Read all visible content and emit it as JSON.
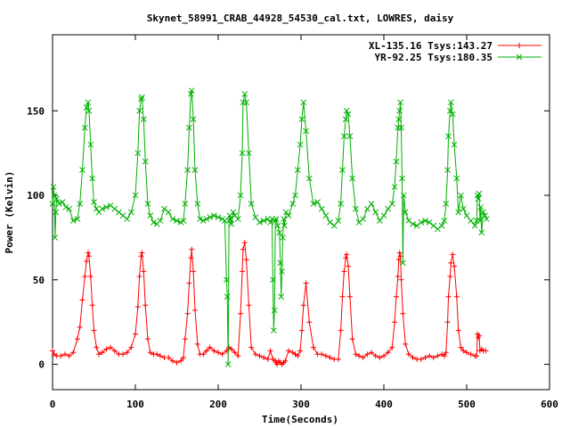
{
  "chart_data": {
    "type": "line",
    "title": "Skynet_58991_CRAB_44928_54530_cal.txt, LOWRES, daisy",
    "xlabel": "Time(Seconds)",
    "ylabel": "Power (Kelvin)",
    "xlim": [
      0,
      600
    ],
    "ylim": [
      -15,
      195
    ],
    "x_ticks": [
      0,
      100,
      200,
      300,
      400,
      500,
      600
    ],
    "y_ticks": [
      0,
      50,
      100,
      150
    ],
    "grid": false,
    "legend_position": "top-right",
    "series": [
      {
        "name": "XL-135.16 Tsys:143.27",
        "color": "#ff0000",
        "marker": "plus",
        "x": [
          0,
          2,
          5,
          10,
          15,
          20,
          25,
          30,
          33,
          36,
          39,
          41,
          43,
          44,
          46,
          48,
          50,
          53,
          56,
          60,
          65,
          70,
          75,
          80,
          85,
          90,
          95,
          100,
          103,
          105,
          107,
          108,
          110,
          112,
          115,
          118,
          122,
          126,
          130,
          135,
          140,
          145,
          150,
          155,
          158,
          160,
          163,
          165,
          167,
          168,
          170,
          172,
          175,
          178,
          182,
          186,
          190,
          195,
          200,
          205,
          210,
          213,
          216,
          220,
          224,
          227,
          229,
          230,
          232,
          234,
          237,
          240,
          245,
          250,
          255,
          260,
          263,
          266,
          269,
          270,
          271,
          273,
          275,
          277,
          279,
          281,
          285,
          290,
          293,
          296,
          299,
          301,
          303,
          306,
          310,
          315,
          320,
          325,
          330,
          335,
          340,
          345,
          348,
          350,
          352,
          354,
          355,
          357,
          359,
          362,
          366,
          370,
          375,
          380,
          385,
          390,
          395,
          400,
          405,
          410,
          413,
          415,
          417,
          418,
          419,
          420,
          421,
          423,
          426,
          430,
          435,
          440,
          445,
          450,
          455,
          460,
          465,
          470,
          473,
          475,
          477,
          478,
          480,
          481,
          483,
          485,
          488,
          490,
          493,
          496,
          500,
          505,
          510,
          512,
          513,
          514,
          515,
          516,
          518,
          520,
          523
        ],
        "y": [
          8,
          6,
          5,
          5,
          6,
          5,
          7,
          15,
          22,
          38,
          52,
          61,
          66,
          64,
          52,
          35,
          20,
          10,
          6,
          7,
          9,
          10,
          8,
          6,
          6,
          7,
          10,
          18,
          34,
          52,
          64,
          66,
          55,
          35,
          15,
          7,
          6,
          6,
          5,
          4,
          4,
          2,
          1,
          2,
          4,
          15,
          30,
          48,
          63,
          68,
          55,
          32,
          12,
          6,
          6,
          8,
          10,
          8,
          7,
          6,
          8,
          10,
          9,
          7,
          5,
          30,
          55,
          68,
          72,
          62,
          35,
          10,
          6,
          5,
          4,
          3,
          8,
          3,
          2,
          1,
          0,
          2,
          1,
          0,
          1,
          2,
          8,
          7,
          6,
          5,
          8,
          20,
          35,
          48,
          25,
          10,
          6,
          6,
          5,
          4,
          3,
          3,
          20,
          40,
          55,
          63,
          65,
          58,
          40,
          15,
          6,
          5,
          4,
          6,
          7,
          5,
          4,
          5,
          7,
          10,
          25,
          40,
          52,
          62,
          66,
          64,
          50,
          30,
          12,
          6,
          4,
          3,
          3,
          4,
          5,
          4,
          5,
          6,
          5,
          7,
          25,
          40,
          52,
          60,
          65,
          58,
          40,
          20,
          10,
          8,
          7,
          6,
          5,
          5,
          18,
          16,
          17,
          8,
          9,
          8,
          8
        ]
      },
      {
        "name": "YR-92.25 Tsys:180.35",
        "color": "#00b000",
        "marker": "x",
        "x": [
          0,
          1,
          2,
          3,
          4,
          5,
          8,
          12,
          16,
          20,
          25,
          30,
          33,
          36,
          39,
          41,
          43,
          44,
          46,
          48,
          50,
          53,
          56,
          60,
          65,
          70,
          75,
          80,
          85,
          90,
          95,
          100,
          103,
          105,
          107,
          108,
          110,
          112,
          115,
          118,
          122,
          126,
          130,
          135,
          140,
          145,
          150,
          155,
          158,
          160,
          163,
          165,
          167,
          168,
          170,
          172,
          175,
          178,
          182,
          186,
          190,
          195,
          200,
          205,
          208,
          210,
          211,
          212,
          213,
          214,
          215,
          216,
          218,
          220,
          224,
          227,
          229,
          230,
          232,
          234,
          237,
          240,
          245,
          250,
          255,
          260,
          263,
          265,
          266,
          267,
          268,
          269,
          270,
          272,
          274,
          275,
          276,
          277,
          278,
          279,
          280,
          282,
          285,
          290,
          293,
          296,
          299,
          301,
          303,
          306,
          310,
          315,
          320,
          325,
          330,
          335,
          340,
          345,
          348,
          350,
          352,
          354,
          355,
          357,
          359,
          362,
          366,
          370,
          375,
          380,
          385,
          390,
          395,
          400,
          405,
          410,
          413,
          415,
          417,
          418,
          419,
          420,
          421,
          422,
          423,
          424,
          426,
          430,
          435,
          440,
          445,
          450,
          455,
          460,
          465,
          470,
          473,
          475,
          477,
          478,
          480,
          481,
          483,
          485,
          488,
          490,
          493,
          496,
          500,
          505,
          510,
          512,
          513,
          514,
          515,
          516,
          517,
          518,
          520,
          522,
          524
        ],
        "y": [
          95,
          105,
          100,
          75,
          90,
          98,
          95,
          96,
          93,
          92,
          85,
          86,
          95,
          115,
          140,
          152,
          155,
          150,
          130,
          110,
          96,
          92,
          90,
          92,
          93,
          94,
          92,
          90,
          88,
          86,
          90,
          100,
          125,
          150,
          157,
          158,
          145,
          120,
          95,
          88,
          84,
          83,
          85,
          92,
          90,
          86,
          85,
          84,
          85,
          95,
          115,
          140,
          160,
          162,
          145,
          115,
          95,
          86,
          85,
          86,
          87,
          88,
          87,
          86,
          85,
          50,
          40,
          0,
          85,
          88,
          86,
          83,
          90,
          88,
          86,
          100,
          125,
          155,
          160,
          155,
          125,
          95,
          87,
          84,
          85,
          86,
          84,
          86,
          50,
          20,
          32,
          85,
          86,
          82,
          78,
          60,
          40,
          55,
          75,
          86,
          82,
          90,
          88,
          95,
          100,
          115,
          130,
          145,
          155,
          138,
          110,
          95,
          96,
          92,
          88,
          84,
          82,
          85,
          95,
          115,
          135,
          145,
          150,
          148,
          135,
          110,
          92,
          84,
          86,
          92,
          95,
          90,
          85,
          88,
          92,
          95,
          105,
          120,
          140,
          145,
          150,
          155,
          140,
          110,
          60,
          100,
          90,
          85,
          83,
          82,
          84,
          85,
          84,
          82,
          80,
          82,
          85,
          95,
          115,
          135,
          150,
          155,
          148,
          130,
          110,
          90,
          100,
          92,
          88,
          85,
          82,
          85,
          100,
          98,
          101,
          85,
          93,
          78,
          90,
          88,
          86
        ]
      }
    ]
  }
}
